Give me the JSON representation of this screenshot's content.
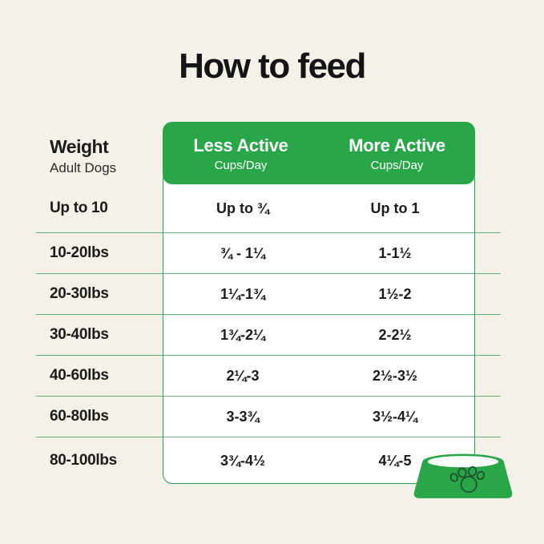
{
  "page": {
    "title": "How to feed",
    "background_color": "#f4f1e8",
    "accent_green": "#29a648",
    "line_green": "#2e9c52",
    "text_color": "#141414"
  },
  "table": {
    "weight_header": {
      "title": "Weight",
      "subtitle": "Adult Dogs"
    },
    "columns": [
      {
        "label": "Less Active",
        "sublabel": "Cups/Day"
      },
      {
        "label": "More Active",
        "sublabel": "Cups/Day"
      }
    ],
    "rows": [
      {
        "weight": "Up to 10",
        "less_active": "Up to ¾",
        "more_active": "Up to 1"
      },
      {
        "weight": "10-20lbs",
        "less_active": "¾ - 1¼",
        "more_active": "1-1½"
      },
      {
        "weight": "20-30lbs",
        "less_active": "1¼-1¾",
        "more_active": "1½-2"
      },
      {
        "weight": "30-40lbs",
        "less_active": "1¾-2¼",
        "more_active": "2-2½"
      },
      {
        "weight": "40-60lbs",
        "less_active": "2¼-3",
        "more_active": "2½-3½"
      },
      {
        "weight": "60-80lbs",
        "less_active": "3-3¾",
        "more_active": "3½-4¼"
      },
      {
        "weight": "80-100lbs",
        "less_active": "3¾-4½",
        "more_active": "4¼-5"
      }
    ]
  },
  "icons": {
    "bowl": "dog-bowl-with-paw-icon",
    "bowl_fill": "#29a648",
    "paw_outline": "#1c4f2a"
  },
  "chart_data": {
    "type": "table",
    "title": "How to feed",
    "columns": [
      "Weight (Adult Dogs)",
      "Less Active Cups/Day",
      "More Active Cups/Day"
    ],
    "rows": [
      [
        "Up to 10",
        "Up to ¾",
        "Up to 1"
      ],
      [
        "10-20lbs",
        "¾ - 1¼",
        "1-1½"
      ],
      [
        "20-30lbs",
        "1¼-1¾",
        "1½-2"
      ],
      [
        "30-40lbs",
        "1¾-2¼",
        "2-2½"
      ],
      [
        "40-60lbs",
        "2¼-3",
        "2½-3½"
      ],
      [
        "60-80lbs",
        "3-3¾",
        "3½-4¼"
      ],
      [
        "80-100lbs",
        "3¾-4½",
        "4¼-5"
      ]
    ],
    "layout": {
      "header_style": "green rounded banner over value columns",
      "row_separators": "thin green horizontal lines extending beyond table body",
      "grid": "horizontal only"
    }
  }
}
